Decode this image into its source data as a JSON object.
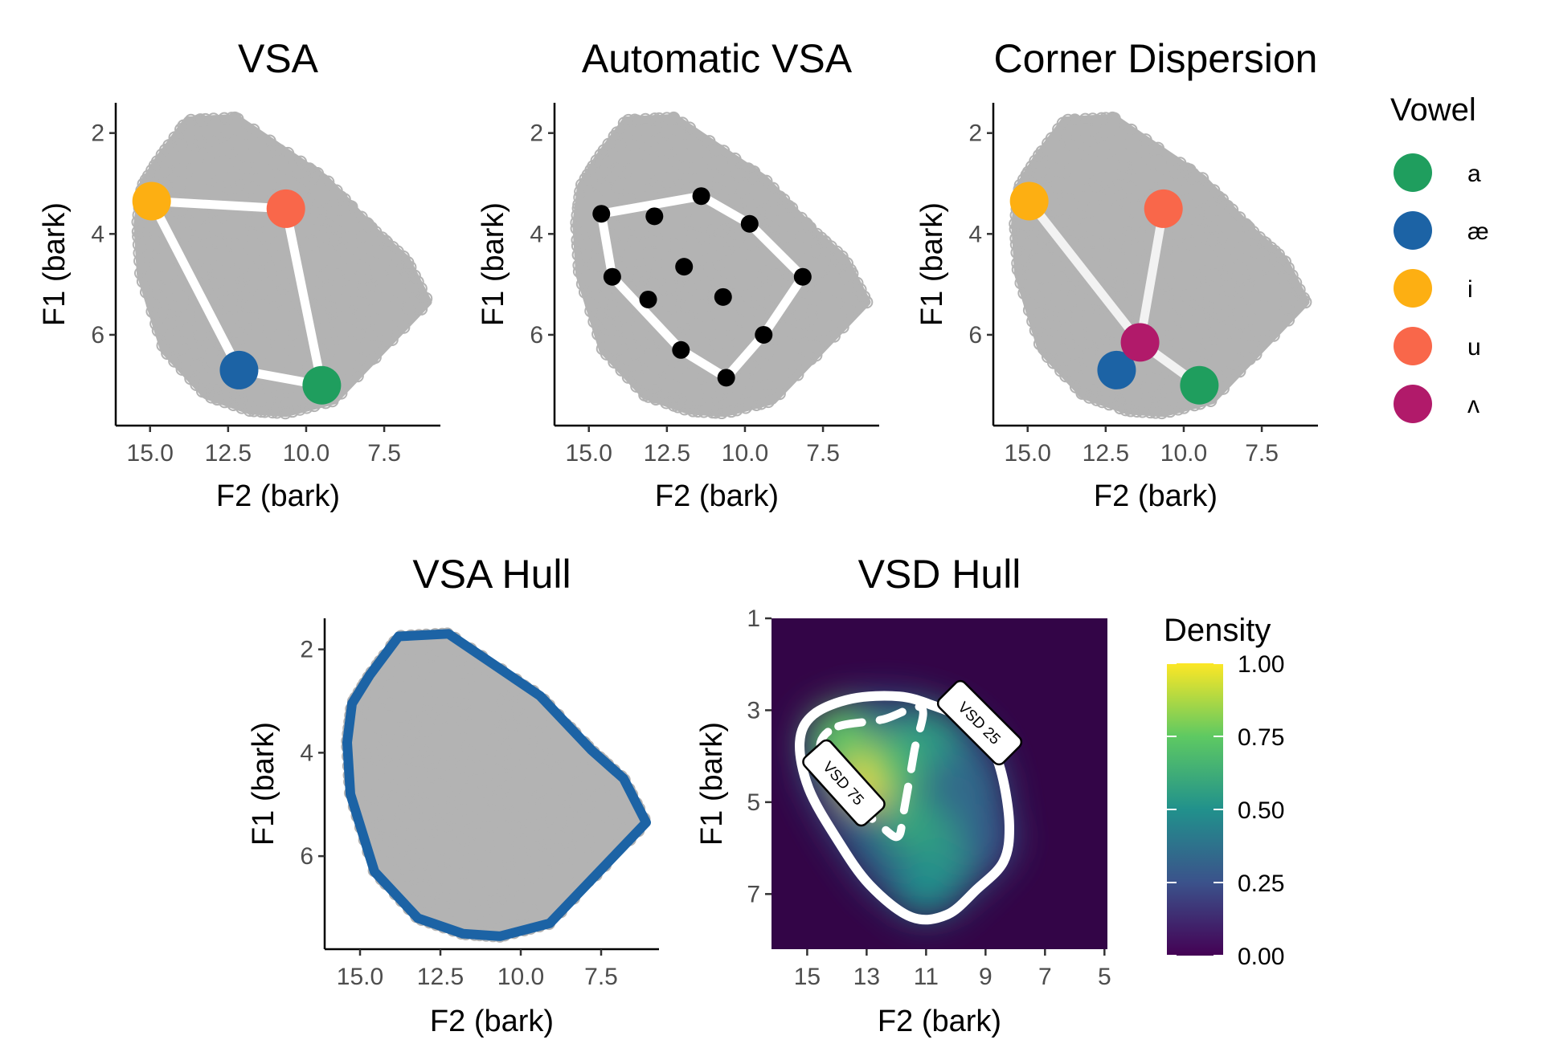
{
  "colors": {
    "cloud": "#b3b3b3",
    "a": "#1f9e5e",
    "ae": "#1c63a5",
    "i": "#fdaf12",
    "u": "#f9674a",
    "wedge": "#b11a6a",
    "hull": "#1c63a5",
    "heat_bg": "#330547"
  },
  "chart_data": [
    {
      "type": "scatter",
      "title": "VSA",
      "xlabel": "F2 (bark)",
      "ylabel": "F1 (bark)",
      "xlim": [
        16.1,
        5.7
      ],
      "ylim": [
        1.4,
        7.8
      ],
      "x_reversed": true,
      "y_reversed": true,
      "xticks": [
        "15.0",
        "12.5",
        "10.0",
        "7.5"
      ],
      "yticks": [
        "2",
        "4",
        "6"
      ],
      "polygon": {
        "order": [
          "i",
          "u",
          "a",
          "ae"
        ],
        "color": "white"
      },
      "points": [
        {
          "vowel": "i",
          "x": 14.95,
          "y": 3.35
        },
        {
          "vowel": "u",
          "x": 10.65,
          "y": 3.5
        },
        {
          "vowel": "a",
          "x": 9.5,
          "y": 7.0
        },
        {
          "vowel": "ae",
          "x": 12.15,
          "y": 6.7
        }
      ]
    },
    {
      "type": "scatter",
      "title": "Automatic VSA",
      "xlabel": "F2 (bark)",
      "ylabel": "F1 (bark)",
      "xlim": [
        16.1,
        5.7
      ],
      "ylim": [
        1.4,
        7.8
      ],
      "x_reversed": true,
      "y_reversed": true,
      "xticks": [
        "15.0",
        "12.5",
        "10.0",
        "7.5"
      ],
      "yticks": [
        "2",
        "4",
        "6"
      ],
      "hull_points": [
        {
          "x": 14.6,
          "y": 3.6
        },
        {
          "x": 11.4,
          "y": 3.25
        },
        {
          "x": 9.85,
          "y": 3.8
        },
        {
          "x": 8.15,
          "y": 4.85
        },
        {
          "x": 9.4,
          "y": 6.0
        },
        {
          "x": 10.6,
          "y": 6.85
        },
        {
          "x": 12.05,
          "y": 6.3
        },
        {
          "x": 14.25,
          "y": 4.85
        }
      ],
      "interior_points": [
        {
          "x": 12.9,
          "y": 3.65
        },
        {
          "x": 11.95,
          "y": 4.65
        },
        {
          "x": 13.1,
          "y": 5.3
        },
        {
          "x": 10.7,
          "y": 5.25
        }
      ]
    },
    {
      "type": "scatter",
      "title": "Corner Dispersion",
      "xlabel": "F2 (bark)",
      "ylabel": "F1 (bark)",
      "xlim": [
        16.1,
        5.7
      ],
      "ylim": [
        1.4,
        7.8
      ],
      "x_reversed": true,
      "y_reversed": true,
      "xticks": [
        "15.0",
        "12.5",
        "10.0",
        "7.5"
      ],
      "yticks": [
        "2",
        "4",
        "6"
      ],
      "center": {
        "vowel": "wedge",
        "x": 11.4,
        "y": 6.15
      },
      "points": [
        {
          "vowel": "i",
          "x": 14.95,
          "y": 3.35
        },
        {
          "vowel": "u",
          "x": 10.65,
          "y": 3.5
        },
        {
          "vowel": "a",
          "x": 9.5,
          "y": 7.0
        },
        {
          "vowel": "ae",
          "x": 12.15,
          "y": 6.7
        }
      ]
    },
    {
      "type": "scatter",
      "title": "VSA Hull",
      "xlabel": "F2 (bark)",
      "ylabel": "F1 (bark)",
      "xlim": [
        16.1,
        5.7
      ],
      "ylim": [
        1.4,
        7.8
      ],
      "x_reversed": true,
      "y_reversed": true,
      "xticks": [
        "15.0",
        "12.5",
        "10.0",
        "7.5"
      ],
      "yticks": [
        "2",
        "4",
        "6"
      ],
      "hull": [
        {
          "x": 13.8,
          "y": 1.75
        },
        {
          "x": 12.25,
          "y": 1.7
        },
        {
          "x": 9.4,
          "y": 2.9
        },
        {
          "x": 7.8,
          "y": 3.95
        },
        {
          "x": 6.8,
          "y": 4.5
        },
        {
          "x": 6.1,
          "y": 5.35
        },
        {
          "x": 9.1,
          "y": 7.3
        },
        {
          "x": 10.65,
          "y": 7.55
        },
        {
          "x": 11.8,
          "y": 7.5
        },
        {
          "x": 13.2,
          "y": 7.2
        },
        {
          "x": 14.55,
          "y": 6.3
        },
        {
          "x": 15.3,
          "y": 4.8
        },
        {
          "x": 15.4,
          "y": 3.8
        },
        {
          "x": 15.25,
          "y": 3.05
        },
        {
          "x": 14.7,
          "y": 2.5
        }
      ]
    },
    {
      "type": "heatmap",
      "title": "VSD Hull",
      "xlabel": "F2 (bark)",
      "ylabel": "F1 (bark)",
      "xlim": [
        16.2,
        4.9
      ],
      "ylim": [
        1.0,
        8.2
      ],
      "x_reversed": true,
      "y_reversed": true,
      "xticks": [
        "15",
        "13",
        "11",
        "9",
        "7",
        "5"
      ],
      "yticks": [
        "1",
        "3",
        "5",
        "7"
      ],
      "colorbar": {
        "title": "Density",
        "ticks": [
          "1.00",
          "0.75",
          "0.50",
          "0.25",
          "0.00"
        ],
        "range": [
          0,
          1
        ]
      },
      "contours": [
        {
          "label": "VSD 25",
          "style": "solid",
          "points": [
            {
              "x": 14.8,
              "y": 3.1
            },
            {
              "x": 13.5,
              "y": 2.75
            },
            {
              "x": 11.9,
              "y": 2.7
            },
            {
              "x": 10.75,
              "y": 2.9
            },
            {
              "x": 9.7,
              "y": 3.2
            },
            {
              "x": 8.9,
              "y": 3.7
            },
            {
              "x": 8.45,
              "y": 4.4
            },
            {
              "x": 8.2,
              "y": 5.5
            },
            {
              "x": 8.4,
              "y": 6.3
            },
            {
              "x": 9.3,
              "y": 6.9
            },
            {
              "x": 10.3,
              "y": 7.45
            },
            {
              "x": 11.5,
              "y": 7.5
            },
            {
              "x": 12.9,
              "y": 6.8
            },
            {
              "x": 14.0,
              "y": 5.8
            },
            {
              "x": 14.95,
              "y": 4.7
            },
            {
              "x": 15.25,
              "y": 3.7
            }
          ]
        },
        {
          "label": "VSD 75",
          "style": "dashed",
          "points": [
            {
              "x": 13.95,
              "y": 3.35
            },
            {
              "x": 12.45,
              "y": 3.2
            },
            {
              "x": 11.15,
              "y": 2.95
            },
            {
              "x": 11.4,
              "y": 3.9
            },
            {
              "x": 11.75,
              "y": 5.2
            },
            {
              "x": 11.95,
              "y": 5.75
            },
            {
              "x": 12.55,
              "y": 5.5
            },
            {
              "x": 13.4,
              "y": 5.0
            },
            {
              "x": 14.3,
              "y": 4.2
            },
            {
              "x": 14.55,
              "y": 3.7
            }
          ]
        }
      ],
      "density_peaks": [
        {
          "x": 12.9,
          "y": 4.4,
          "value": 1.0
        },
        {
          "x": 13.9,
          "y": 3.6,
          "value": 0.75
        },
        {
          "x": 12.0,
          "y": 4.1,
          "value": 0.7
        },
        {
          "x": 10.9,
          "y": 3.6,
          "value": 0.55
        },
        {
          "x": 11.6,
          "y": 5.4,
          "value": 0.6
        },
        {
          "x": 10.3,
          "y": 6.0,
          "value": 0.55
        },
        {
          "x": 11.0,
          "y": 6.8,
          "value": 0.5
        },
        {
          "x": 9.6,
          "y": 4.8,
          "value": 0.35
        },
        {
          "x": 9.0,
          "y": 5.8,
          "value": 0.3
        }
      ]
    }
  ],
  "legend": {
    "title": "Vowel",
    "items": [
      {
        "key": "a",
        "label": "a"
      },
      {
        "key": "ae",
        "label": "æ"
      },
      {
        "key": "i",
        "label": "i"
      },
      {
        "key": "u",
        "label": "u"
      },
      {
        "key": "wedge",
        "label": "ʌ"
      }
    ]
  }
}
